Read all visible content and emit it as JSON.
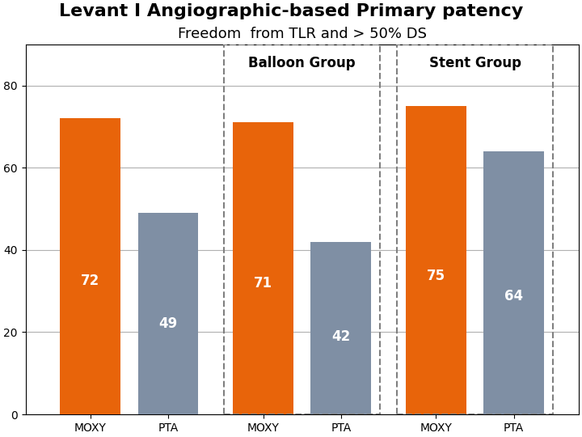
{
  "chart_data": {
    "type": "bar",
    "title": "Levant I Angiographic-based Primary patency",
    "subtitle": "Freedom  from TLR and > 50% DS",
    "categories": [
      null,
      "Balloon Group",
      "Stent Group"
    ],
    "series": [
      {
        "name": "MOXY",
        "color": "#e8640a",
        "values": [
          72,
          71,
          75
        ]
      },
      {
        "name": "PTA",
        "color": "#7f8fa4",
        "values": [
          49,
          42,
          64
        ]
      }
    ],
    "ylim": [
      0,
      90
    ],
    "yticks": [
      0,
      20,
      40,
      60,
      80
    ],
    "grid": true,
    "data_labels": true
  }
}
